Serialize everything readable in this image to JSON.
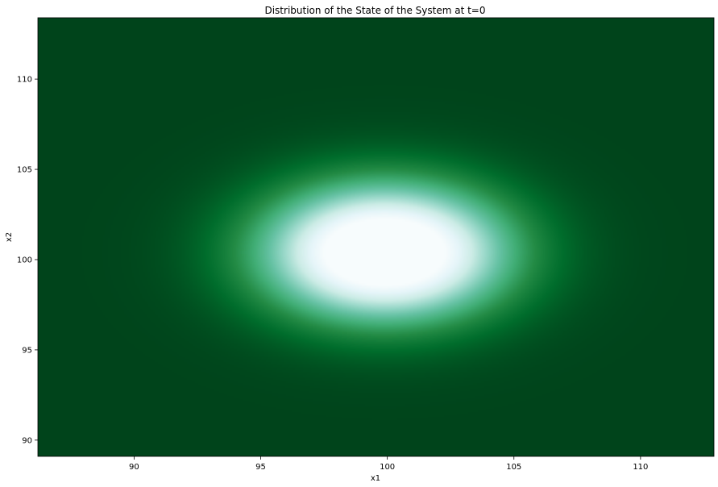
{
  "chart_data": {
    "type": "heatmap",
    "title": "Distribution of the State of the System at t=0",
    "xlabel": "x1",
    "ylabel": "x2",
    "xlim": [
      86.2,
      112.9
    ],
    "ylim": [
      89.1,
      113.4
    ],
    "xticks": [
      90,
      95,
      100,
      105,
      110
    ],
    "yticks": [
      90,
      95,
      100,
      105,
      110
    ],
    "colormap": "BuGn_r",
    "colormap_stops": [
      "#00441b",
      "#006d2c",
      "#238b45",
      "#41ae76",
      "#66c2a4",
      "#99d8c9",
      "#ccece6",
      "#e5f5f9",
      "#f7fcfd"
    ],
    "distribution": {
      "shape": "gaussian blob",
      "center": [
        99.9,
        100.4
      ],
      "std": [
        3.1,
        2.4
      ],
      "peak_density": 1.0
    },
    "grid": false,
    "legend": false
  }
}
